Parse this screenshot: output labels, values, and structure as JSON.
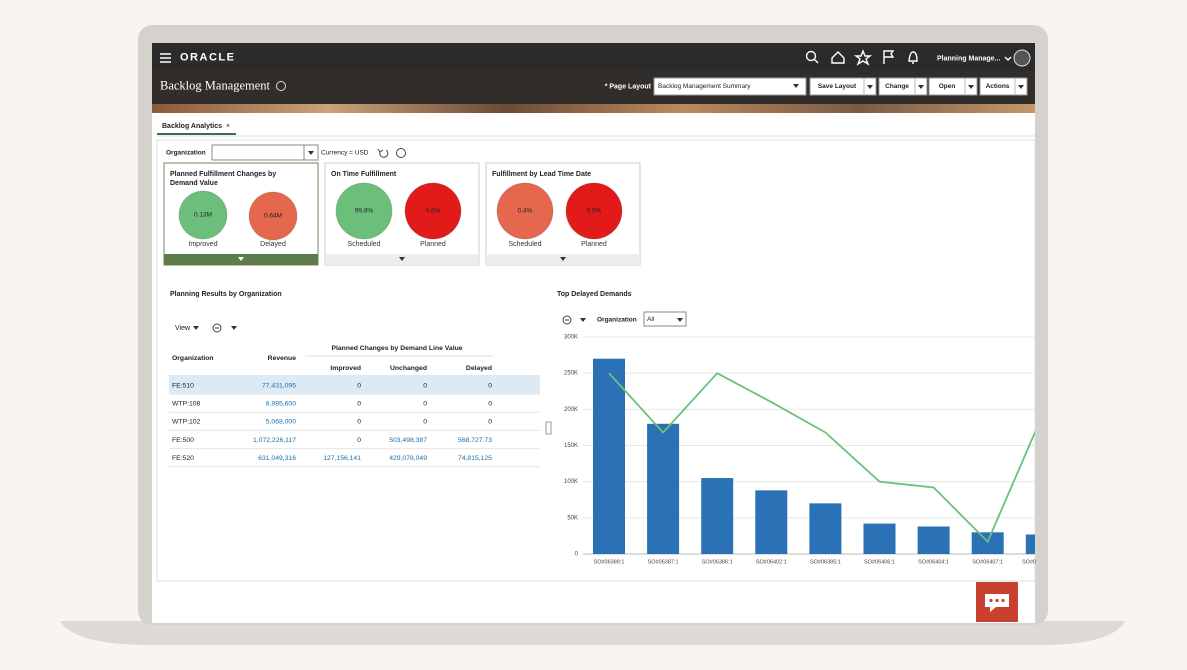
{
  "header": {
    "brand": "ORACLE",
    "user": "Planning Manage...",
    "title": "Backlog Management",
    "page_layout_label": "* Page Layout",
    "page_layout_value": "Backlog Management Summary",
    "buttons": [
      "Save Layout",
      "Change",
      "Open",
      "Actions"
    ]
  },
  "tab": "Backlog Analytics",
  "filter": {
    "label": "Organization",
    "currency": "Currency = USD"
  },
  "tiles": [
    {
      "title": "Planned Fulfillment Changes by Demand Value",
      "items": [
        {
          "value": "0.13M",
          "label": "Improved"
        },
        {
          "value": "0.64M",
          "label": "Delayed"
        }
      ]
    },
    {
      "title": "On Time Fulfillment",
      "items": [
        {
          "value": "99.8%",
          "label": "Scheduled"
        },
        {
          "value": "0.6%",
          "label": "Planned"
        }
      ]
    },
    {
      "title": "Fulfillment by Lead Time Date",
      "items": [
        {
          "value": "0.4%",
          "label": "Scheduled"
        },
        {
          "value": "0.5%",
          "label": "Planned"
        }
      ]
    }
  ],
  "table": {
    "title": "Planning Results by Organization",
    "view": "View",
    "group_header": "Planned Changes by Demand Line Value",
    "columns": [
      "Organization",
      "Revenue",
      "Improved",
      "Unchanged",
      "Delayed"
    ],
    "rows": [
      [
        "FE:510",
        "77,431,095",
        "0",
        "0",
        "0"
      ],
      [
        "WTP:108",
        "8,985,600",
        "0",
        "0",
        "0"
      ],
      [
        "WTP:102",
        "5,068,000",
        "0",
        "0",
        "0"
      ],
      [
        "FE:500",
        "1,072,226,117",
        "0",
        "503,498,387",
        "568,727.73"
      ],
      [
        "FE:520",
        "631,049,316",
        "127,156,141",
        "429,078,049",
        "74,815,125"
      ]
    ]
  },
  "chart_data": {
    "type": "bar",
    "title": "Top Delayed Demands",
    "filter_label": "Organization",
    "filter_value": "All",
    "categories": [
      "SO#06389:1",
      "SO#06387:1",
      "SO#06386:1",
      "SO#06402:1",
      "SO#06385:1",
      "SO#06406:1",
      "SO#06404:1",
      "SO#06407:1",
      "SO#0"
    ],
    "series": [
      {
        "type": "bar",
        "color": "#2a72b5",
        "values": [
          270000,
          180000,
          105000,
          88000,
          70000,
          42000,
          38000,
          30000,
          27000
        ]
      },
      {
        "type": "line",
        "color": "#6cc17a",
        "values": [
          250000,
          168000,
          250000,
          210000,
          168000,
          100000,
          92000,
          17000,
          190000
        ]
      }
    ],
    "ylim": [
      0,
      300000
    ],
    "yticks": [
      0,
      {
        "value": 50000,
        "label": "50K"
      },
      {
        "value": 100000,
        "label": "100K"
      },
      {
        "value": 150000,
        "label": "150K"
      },
      {
        "value": 200000,
        "label": "200K"
      },
      {
        "value": 250000,
        "label": "250K"
      },
      {
        "value": 300000,
        "label": "300K"
      }
    ],
    "grid": true
  }
}
